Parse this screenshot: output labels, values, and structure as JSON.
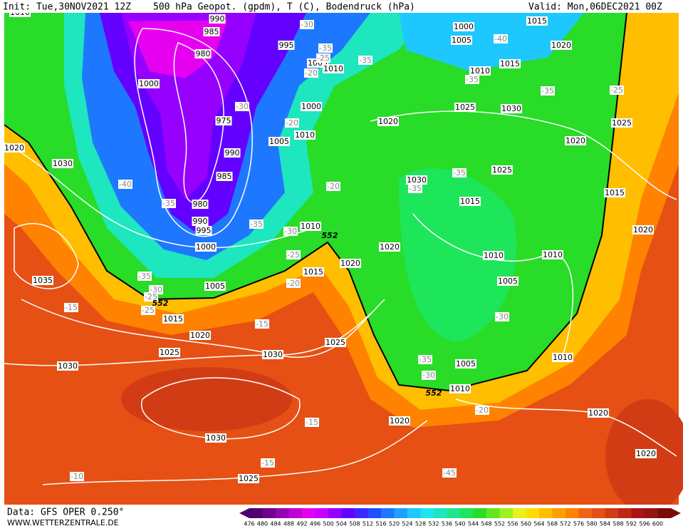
{
  "header": {
    "init": "Init: Tue,30NOV2021 12Z",
    "title": "500 hPa Geopot. (gpdm), T (C), Bodendruck (hPa)",
    "valid": "Valid: Mon,06DEC2021 00Z"
  },
  "footer": {
    "data": "Data: GFS OPER 0.250°",
    "site": "WWW.WETTERZENTRALE.DE"
  },
  "isobar_labels": [
    1010,
    990,
    985,
    980,
    995,
    1000,
    1005,
    1010,
    975,
    1000,
    990,
    1005,
    1010,
    985,
    980,
    990,
    995,
    1000,
    1030,
    1020,
    1035,
    1005,
    1015,
    1020,
    1025,
    1030,
    1030,
    1025,
    1030,
    1025,
    1010,
    1015,
    1020,
    1020,
    1020,
    1030,
    1015,
    1025,
    1030,
    1025,
    1020,
    1010,
    1010,
    1005,
    1010,
    1005,
    1010,
    1020,
    1020,
    1020,
    1015,
    1020,
    1025,
    1015,
    1020,
    1015,
    1010,
    1000,
    1005
  ],
  "temperature_labels": [
    -30,
    -35,
    -25,
    -20,
    -35,
    -35,
    -40,
    -35,
    -25,
    -30,
    -20,
    -20,
    -35,
    -35,
    -40,
    -35,
    -35,
    -30,
    -25,
    -20,
    -35,
    -30,
    -25,
    -25,
    -15,
    -15,
    -15,
    -15,
    -10,
    -30,
    -35,
    -30,
    -20,
    -45
  ],
  "geopotential_labels": [
    552,
    552,
    552
  ],
  "scale": {
    "labels": [
      476,
      480,
      484,
      488,
      492,
      496,
      500,
      504,
      508,
      512,
      516,
      520,
      524,
      528,
      532,
      536,
      540,
      544,
      548,
      552,
      556,
      560,
      564,
      568,
      572,
      576,
      580,
      584,
      588,
      592,
      596,
      600
    ],
    "colors": [
      "#50006e",
      "#6e008c",
      "#9600b4",
      "#be00d2",
      "#e600f0",
      "#c800ff",
      "#9600ff",
      "#6400ff",
      "#3c28ff",
      "#1e50ff",
      "#1e78ff",
      "#1ea0ff",
      "#1ec8ff",
      "#1ee6f0",
      "#1ee6be",
      "#1ee68c",
      "#1ee65a",
      "#28dc28",
      "#64e61e",
      "#a0f01e",
      "#e6f01e",
      "#ffdc00",
      "#ffbe00",
      "#ffa000",
      "#ff8200",
      "#f06414",
      "#e65014",
      "#d23c14",
      "#be2814",
      "#aa1414",
      "#961414",
      "#7a0a0a"
    ]
  }
}
